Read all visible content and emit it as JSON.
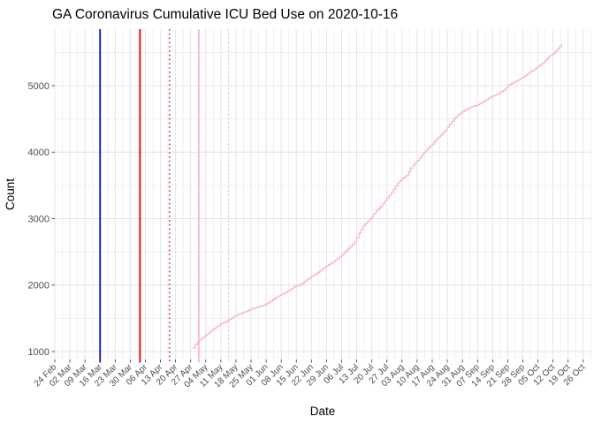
{
  "title": "GA Coronavirus Cumulative ICU Bed Use on 2020-10-16",
  "chart_data": {
    "type": "line",
    "title": "GA Coronavirus Cumulative ICU Bed Use on 2020-10-16",
    "xlabel": "Date",
    "ylabel": "Count",
    "legend_position": "none",
    "grid": true,
    "background": "#ffffff",
    "grid_major_color": "#e4e4e4",
    "grid_minor_color": "#ececec",
    "tick_color": "#333333",
    "line_color": "#f6aebf",
    "ylim": [
      880,
      5850
    ],
    "y_ticks": [
      1000,
      2000,
      3000,
      4000,
      5000
    ],
    "y_tick_labels": [
      "1000",
      "2000",
      "3000",
      "4000",
      "5000"
    ],
    "x_origin_date": "2020-02-24",
    "x_domain_days": [
      0,
      248.5
    ],
    "x_tick_interval_days": 7,
    "x_tick_labels": [
      "24 Feb",
      "02 Mar",
      "09 Mar",
      "16 Mar",
      "23 Mar",
      "30 Mar",
      "06 Apr",
      "13 Apr",
      "20 Apr",
      "27 Apr",
      "04 May",
      "11 May",
      "18 May",
      "25 May",
      "01 Jun",
      "08 Jun",
      "15 Jun",
      "22 Jun",
      "29 Jun",
      "06 Jul",
      "13 Jul",
      "20 Jul",
      "27 Jul",
      "03 Aug",
      "10 Aug",
      "17 Aug",
      "24 Aug",
      "31 Aug",
      "07 Sep",
      "14 Sep",
      "21 Sep",
      "28 Sep",
      "05 Oct",
      "12 Oct",
      "19 Oct",
      "26 Oct"
    ],
    "event_lines": [
      {
        "date": "2020-03-16",
        "day": 21,
        "color": "#0b0bd0",
        "style": "solid",
        "width": 1.8
      },
      {
        "date": "2020-04-03",
        "day": 39.5,
        "color": "#dc0000",
        "style": "solid",
        "width": 1.8
      },
      {
        "date": "2020-04-17",
        "day": 53.2,
        "color": "#dc0000",
        "style": "dotted",
        "width": 1.3
      },
      {
        "date": "2020-05-01",
        "day": 66.8,
        "color": "#fbc2ce",
        "style": "solid",
        "width": 2.2
      },
      {
        "date": "2020-05-14",
        "day": 80.5,
        "color": "#fbc2ce",
        "style": "dotted",
        "width": 1.3
      }
    ],
    "series": [
      {
        "name": "cumulative-icu-bed-use",
        "style": "step",
        "points_day_count": [
          [
            64,
            1050
          ],
          [
            65,
            1100
          ],
          [
            66,
            1130
          ],
          [
            67,
            1170
          ],
          [
            69,
            1225
          ],
          [
            71,
            1275
          ],
          [
            73,
            1330
          ],
          [
            75,
            1375
          ],
          [
            77,
            1420
          ],
          [
            79,
            1450
          ],
          [
            81,
            1480
          ],
          [
            83,
            1530
          ],
          [
            85,
            1560
          ],
          [
            87,
            1585
          ],
          [
            89,
            1610
          ],
          [
            91,
            1640
          ],
          [
            93,
            1660
          ],
          [
            95,
            1680
          ],
          [
            97,
            1700
          ],
          [
            99,
            1735
          ],
          [
            101,
            1780
          ],
          [
            103,
            1820
          ],
          [
            105,
            1860
          ],
          [
            107,
            1890
          ],
          [
            109,
            1930
          ],
          [
            111,
            1975
          ],
          [
            113,
            2000
          ],
          [
            115,
            2035
          ],
          [
            117,
            2085
          ],
          [
            119,
            2130
          ],
          [
            121,
            2170
          ],
          [
            123,
            2215
          ],
          [
            125,
            2270
          ],
          [
            127,
            2310
          ],
          [
            129,
            2350
          ],
          [
            131,
            2400
          ],
          [
            133,
            2450
          ],
          [
            135,
            2520
          ],
          [
            137,
            2580
          ],
          [
            139,
            2650
          ],
          [
            141,
            2780
          ],
          [
            143,
            2890
          ],
          [
            145,
            2960
          ],
          [
            147,
            3030
          ],
          [
            149,
            3120
          ],
          [
            151,
            3180
          ],
          [
            153,
            3270
          ],
          [
            155,
            3350
          ],
          [
            157,
            3440
          ],
          [
            159,
            3540
          ],
          [
            161,
            3600
          ],
          [
            163,
            3650
          ],
          [
            165,
            3760
          ],
          [
            167,
            3840
          ],
          [
            169,
            3910
          ],
          [
            171,
            3990
          ],
          [
            173,
            4060
          ],
          [
            175,
            4120
          ],
          [
            177,
            4200
          ],
          [
            179,
            4260
          ],
          [
            181,
            4330
          ],
          [
            183,
            4420
          ],
          [
            185,
            4500
          ],
          [
            187,
            4560
          ],
          [
            189,
            4610
          ],
          [
            191,
            4650
          ],
          [
            193,
            4680
          ],
          [
            196,
            4710
          ],
          [
            199,
            4770
          ],
          [
            202,
            4830
          ],
          [
            205,
            4870
          ],
          [
            208,
            4930
          ],
          [
            210,
            5000
          ],
          [
            212,
            5040
          ],
          [
            214,
            5070
          ],
          [
            216,
            5110
          ],
          [
            218,
            5150
          ],
          [
            220,
            5200
          ],
          [
            222,
            5240
          ],
          [
            224,
            5290
          ],
          [
            226,
            5340
          ],
          [
            228,
            5400
          ],
          [
            229,
            5440
          ],
          [
            231,
            5480
          ],
          [
            233,
            5550
          ],
          [
            235,
            5625
          ]
        ]
      }
    ]
  }
}
